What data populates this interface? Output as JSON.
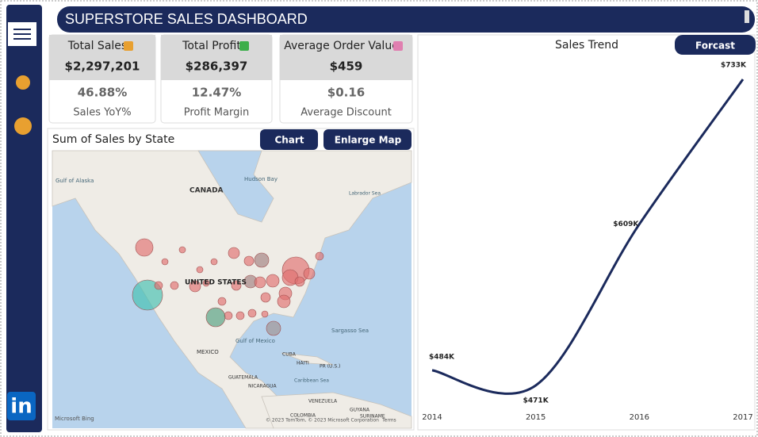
{
  "header": {
    "title": "SUPERSTORE SALES DASHBOARD"
  },
  "sidebar": {
    "linkedin": "in"
  },
  "kpis": [
    {
      "label": "Total Sales",
      "value": "$2,297,201",
      "sub_value": "46.88%",
      "sub_label": "Sales YoY%"
    },
    {
      "label": "Total Profit",
      "value": "$286,397",
      "sub_value": "12.47%",
      "sub_label": "Profit Margin"
    },
    {
      "label": "Average Order Value",
      "value": "$459",
      "sub_value": "$0.16",
      "sub_label": "Average Discount"
    }
  ],
  "map": {
    "title": "Sum of Sales by State",
    "buttons": [
      "Chart",
      "Enlarge Map"
    ],
    "labels": [
      "Gulf of Alaska",
      "CANADA",
      "Hudson Bay",
      "Labrador Sea",
      "UNITED STATES",
      "MEXICO",
      "Gulf of Mexico",
      "Sargasso Sea",
      "CUBA",
      "HAITI",
      "PR (U.S.)",
      "GUATEMALA",
      "NICARAGUA",
      "Caribbean Sea",
      "VENEZUELA",
      "COLOMBIA",
      "GUYANA",
      "SURINAME"
    ],
    "attribution": "Microsoft Bing",
    "copyright": "© 2023 TomTom, © 2023 Microsoft Corporation",
    "terms": "Terms"
  },
  "forecast_button": "Forcast",
  "chart_data": {
    "type": "line",
    "title": "Sales Trend",
    "categories": [
      "2014",
      "2015",
      "2016",
      "2017"
    ],
    "values": [
      484,
      471,
      609,
      733
    ],
    "value_labels": [
      "$484K",
      "$471K",
      "$609K",
      "$733K"
    ],
    "color": "#1b2a5c"
  }
}
